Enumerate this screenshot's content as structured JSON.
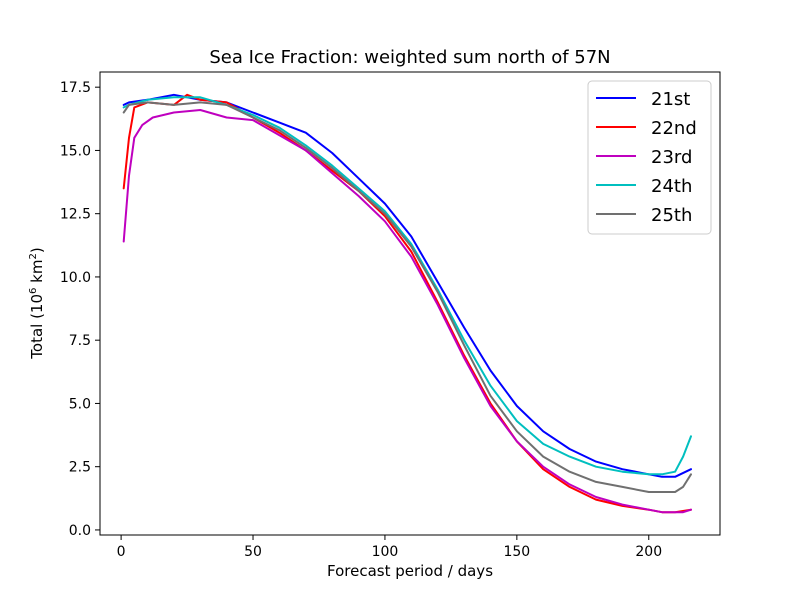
{
  "chart_data": {
    "type": "line",
    "title": "Sea Ice Fraction: weighted sum north of 57N",
    "xlabel": "Forecast period / days",
    "ylabel_main": "Total (10",
    "ylabel_sup": "6",
    "ylabel_unit": " km",
    "ylabel_sup2": "2",
    "ylabel_close": ")",
    "xlim": [
      -8,
      227
    ],
    "ylim": [
      -0.2,
      18.1
    ],
    "xticks": [
      0,
      50,
      100,
      150,
      200
    ],
    "yticks": [
      0.0,
      2.5,
      5.0,
      7.5,
      10.0,
      12.5,
      15.0,
      17.5
    ],
    "xtick_labels": [
      "0",
      "50",
      "100",
      "150",
      "200"
    ],
    "ytick_labels": [
      "0.0",
      "2.5",
      "5.0",
      "7.5",
      "10.0",
      "12.5",
      "15.0",
      "17.5"
    ],
    "legend_position": "top-right",
    "series": [
      {
        "name": "21st",
        "color": "#0000ff",
        "x": [
          1,
          3,
          10,
          20,
          30,
          40,
          50,
          60,
          70,
          80,
          90,
          100,
          110,
          120,
          130,
          140,
          150,
          160,
          170,
          180,
          190,
          200,
          205,
          210,
          216
        ],
        "y": [
          16.8,
          16.9,
          17.0,
          17.2,
          17.0,
          16.9,
          16.5,
          16.1,
          15.7,
          14.9,
          13.9,
          12.9,
          11.6,
          9.8,
          8.0,
          6.3,
          4.9,
          3.9,
          3.2,
          2.7,
          2.4,
          2.2,
          2.1,
          2.1,
          2.4
        ]
      },
      {
        "name": "22nd",
        "color": "#ff0000",
        "x": [
          1,
          3,
          5,
          10,
          20,
          25,
          30,
          40,
          50,
          60,
          70,
          80,
          90,
          100,
          110,
          120,
          130,
          140,
          150,
          160,
          170,
          180,
          190,
          200,
          205,
          210,
          216
        ],
        "y": [
          13.5,
          15.5,
          16.7,
          16.9,
          16.8,
          17.2,
          17.0,
          16.9,
          16.3,
          15.7,
          15.0,
          14.2,
          13.4,
          12.4,
          11.0,
          9.0,
          6.9,
          5.0,
          3.5,
          2.4,
          1.7,
          1.2,
          0.95,
          0.8,
          0.7,
          0.7,
          0.8
        ]
      },
      {
        "name": "23rd",
        "color": "#bf00bf",
        "x": [
          1,
          3,
          5,
          8,
          12,
          20,
          30,
          40,
          50,
          60,
          70,
          80,
          90,
          100,
          110,
          120,
          130,
          140,
          150,
          160,
          170,
          180,
          190,
          200,
          205,
          210,
          213,
          216
        ],
        "y": [
          11.4,
          14.0,
          15.5,
          16.0,
          16.3,
          16.5,
          16.6,
          16.3,
          16.2,
          15.6,
          15.0,
          14.1,
          13.2,
          12.2,
          10.8,
          8.9,
          6.8,
          4.9,
          3.5,
          2.5,
          1.8,
          1.3,
          1.0,
          0.8,
          0.7,
          0.7,
          0.7,
          0.8
        ]
      },
      {
        "name": "24th",
        "color": "#00bfbf",
        "x": [
          1,
          3,
          10,
          20,
          30,
          40,
          50,
          60,
          70,
          80,
          90,
          100,
          110,
          120,
          130,
          140,
          150,
          160,
          170,
          180,
          190,
          200,
          205,
          210,
          213,
          216
        ],
        "y": [
          16.7,
          16.8,
          17.0,
          17.1,
          17.1,
          16.8,
          16.4,
          15.9,
          15.2,
          14.4,
          13.5,
          12.6,
          11.3,
          9.5,
          7.5,
          5.7,
          4.3,
          3.4,
          2.9,
          2.5,
          2.3,
          2.2,
          2.2,
          2.3,
          2.9,
          3.7
        ]
      },
      {
        "name": "25th",
        "color": "#707070",
        "x": [
          1,
          3,
          10,
          20,
          30,
          40,
          50,
          60,
          70,
          80,
          90,
          100,
          110,
          120,
          130,
          140,
          150,
          160,
          170,
          180,
          190,
          200,
          205,
          210,
          213,
          216
        ],
        "y": [
          16.5,
          16.8,
          16.9,
          16.8,
          16.9,
          16.8,
          16.3,
          15.8,
          15.1,
          14.3,
          13.4,
          12.5,
          11.2,
          9.4,
          7.3,
          5.3,
          3.9,
          2.9,
          2.3,
          1.9,
          1.7,
          1.5,
          1.5,
          1.5,
          1.7,
          2.2
        ]
      }
    ]
  }
}
